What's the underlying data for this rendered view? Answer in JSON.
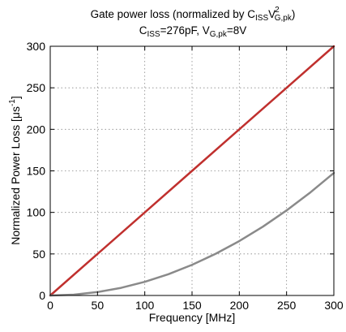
{
  "chart_data": {
    "type": "line",
    "title": {
      "line1": {
        "lead": "Gate power loss (normalized by C",
        "sub1": "ISS",
        "mid": "V",
        "sup": "2",
        "sub2": "G,pk",
        "tail": ")"
      },
      "line2": {
        "p1": "C",
        "sub1": "ISS",
        "p2": "=276pF, V",
        "sub2": "G,pk",
        "p3": "=8V"
      }
    },
    "xlabel": "Frequency [MHz]",
    "ylabel": {
      "main": "Normalized Power Loss [",
      "unit": "μs",
      "sup": "-1",
      "close": "]"
    },
    "xlim": [
      0,
      300
    ],
    "ylim": [
      0,
      300
    ],
    "xticks": [
      0,
      50,
      100,
      150,
      200,
      250,
      300
    ],
    "yticks": [
      0,
      50,
      100,
      150,
      200,
      250,
      300
    ],
    "grid": true,
    "series": [
      {
        "color": "#c0302e",
        "x": [
          0,
          50,
          100,
          150,
          200,
          250,
          300
        ],
        "y": [
          0,
          50,
          100,
          150,
          200,
          250,
          300
        ]
      },
      {
        "color": "#8a8a8a",
        "x": [
          0,
          25,
          50,
          75,
          100,
          125,
          150,
          175,
          200,
          225,
          250,
          275,
          300
        ],
        "y": [
          0,
          1.0,
          4.1,
          9.2,
          16.4,
          25.6,
          36.9,
          50.2,
          65.5,
          82.9,
          102.4,
          123.9,
          147.5
        ]
      }
    ]
  }
}
